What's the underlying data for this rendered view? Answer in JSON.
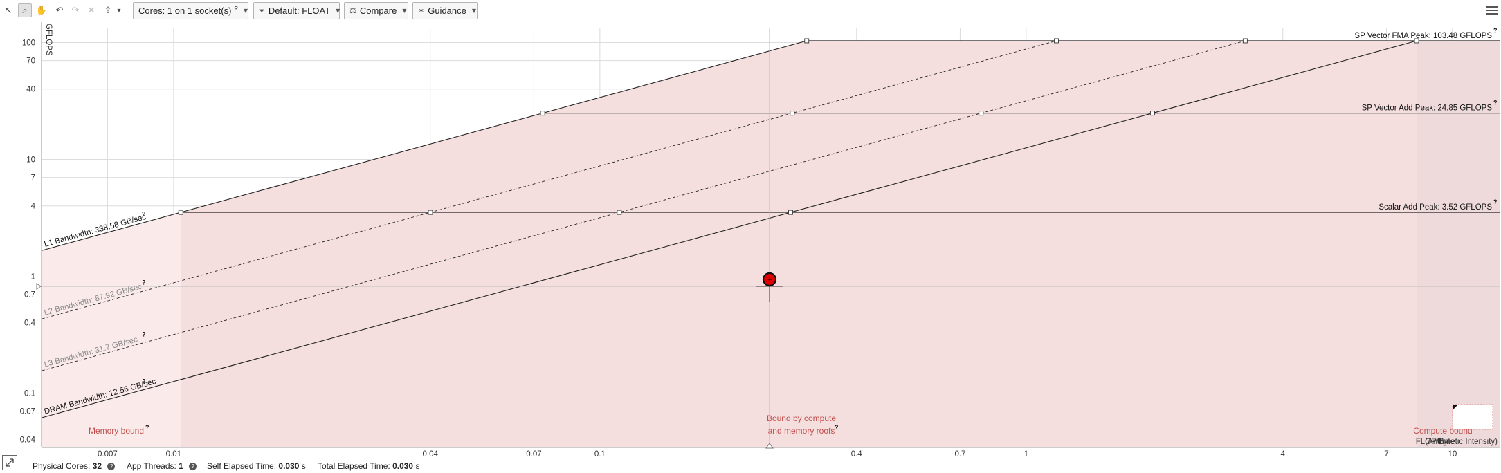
{
  "toolbar": {
    "tools": [
      {
        "name": "select-pointer-icon",
        "glyph": "↖"
      },
      {
        "name": "zoom-icon",
        "glyph": "⌕"
      },
      {
        "name": "pan-hand-icon",
        "glyph": "✋"
      },
      {
        "name": "undo-icon",
        "glyph": "↶"
      },
      {
        "name": "redo-icon",
        "glyph": "↷"
      },
      {
        "name": "clear-icon",
        "glyph": "✕"
      },
      {
        "name": "export-icon",
        "glyph": "⇪"
      },
      {
        "name": "export-dropdown-icon",
        "glyph": "▾"
      }
    ],
    "cores_label": "Cores:",
    "cores_value": "1 on 1 socket(s)",
    "filter_label": "Default: FLOAT",
    "compare_label": "Compare",
    "guidance_label": "Guidance"
  },
  "chart_data": {
    "type": "roofline",
    "xlabel": "FLOP/Byte",
    "xlabel_note": "(Arithmetic Intensity)",
    "ylabel": "GFLOPS",
    "xscale": "log",
    "yscale": "log",
    "xlim": [
      0.0049,
      12.9
    ],
    "ylim": [
      0.0343,
      134
    ],
    "x_ticks": [
      "0.007",
      "0.01",
      "0.04",
      "0.07",
      "0.1",
      "0.4",
      "0.7",
      "1",
      "4",
      "7",
      "10"
    ],
    "y_ticks": [
      "100",
      "70",
      "40",
      "10",
      "7",
      "4",
      "1",
      "0.7",
      "0.4",
      "0.1",
      "0.07",
      "0.04"
    ],
    "compute_roofs": [
      {
        "name": "SP Vector FMA Peak: 103.48 GFLOPS",
        "value": 103.48
      },
      {
        "name": "SP Vector Add Peak: 24.85 GFLOPS",
        "value": 24.85
      },
      {
        "name": "Scalar Add Peak: 3.52 GFLOPS",
        "value": 3.52
      }
    ],
    "memory_roofs": [
      {
        "name": "L1 Bandwidth: 338.58 GB/sec",
        "value": 338.58,
        "style": "solid"
      },
      {
        "name": "L2 Bandwidth: 87.92 GB/sec",
        "value": 87.92,
        "style": "dashed"
      },
      {
        "name": "L3 Bandwidth: 31.7 GB/sec",
        "value": 31.7,
        "style": "dashed"
      },
      {
        "name": "DRAM Bandwidth: 12.56 GB/sec",
        "value": 12.56,
        "style": "solid"
      }
    ],
    "points": [
      {
        "x": 0.25,
        "y": 0.94,
        "color": "#e00000"
      }
    ],
    "regions": {
      "memory": "Memory bound",
      "mixed_line1": "Bound by compute",
      "mixed_line2": "and memory roofs",
      "compute": "Compute bound"
    },
    "help_mark": "?",
    "colors": {
      "region_fill": "#f5dede",
      "memory_fill": "#fbeaea",
      "compute_fill": "#eedada",
      "roof_line": "#222222",
      "dashed_roof_label": "#8a8a8a",
      "region_text": "#c0504d"
    }
  },
  "status": {
    "physical_cores_label": "Physical Cores:",
    "physical_cores_value": "32",
    "app_threads_label": "App Threads:",
    "app_threads_value": "1",
    "self_elapsed_label": "Self Elapsed Time:",
    "self_elapsed_value": "0.030",
    "self_elapsed_unit": "s",
    "total_elapsed_label": "Total Elapsed Time:",
    "total_elapsed_value": "0.030",
    "total_elapsed_unit": "s",
    "help_glyph": "?"
  }
}
